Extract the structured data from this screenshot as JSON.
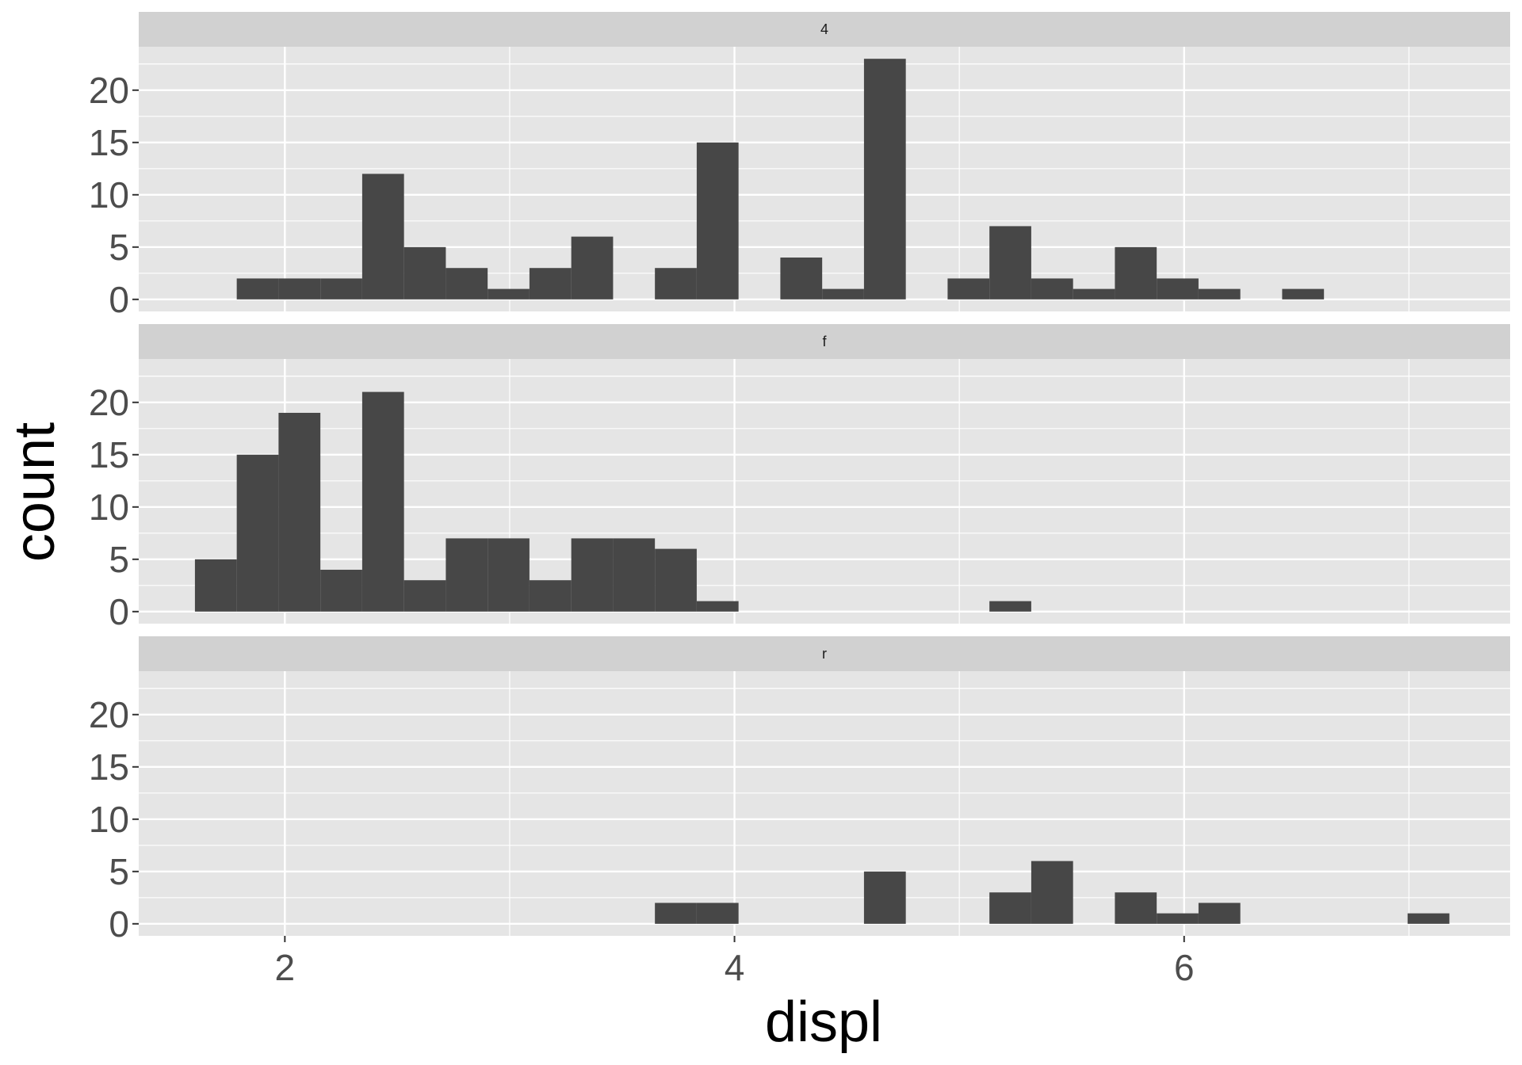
{
  "chart_data": {
    "type": "bar",
    "xlabel": "displ",
    "ylabel": "count",
    "xlim": [
      1.35,
      7.45
    ],
    "ylim": [
      -1.15,
      24.15
    ],
    "x_ticks": [
      2,
      4,
      6
    ],
    "x_tick_labels": [
      "2",
      "4",
      "6"
    ],
    "y_ticks": [
      0,
      5,
      10,
      15,
      20
    ],
    "y_tick_labels": [
      "0",
      "5",
      "10",
      "15",
      "20"
    ],
    "bin_start": 1.6,
    "bin_width": 0.186,
    "grid": true,
    "legend": "none",
    "colors": {
      "bar": "#474747",
      "panel_bg": "#e5e5e5",
      "strip_bg": "#d1d1d1",
      "grid": "#ffffff"
    },
    "panels": [
      {
        "label": "4",
        "counts": [
          0,
          2,
          2,
          2,
          12,
          5,
          3,
          1,
          3,
          6,
          0,
          3,
          15,
          0,
          4,
          1,
          23,
          0,
          2,
          7,
          2,
          1,
          5,
          2,
          1,
          0,
          1,
          0,
          0,
          0
        ]
      },
      {
        "label": "f",
        "counts": [
          5,
          15,
          19,
          4,
          21,
          3,
          7,
          7,
          3,
          7,
          7,
          6,
          1,
          0,
          0,
          0,
          0,
          0,
          0,
          1,
          0,
          0,
          0,
          0,
          0,
          0,
          0,
          0,
          0,
          0
        ]
      },
      {
        "label": "r",
        "counts": [
          0,
          0,
          0,
          0,
          0,
          0,
          0,
          0,
          0,
          0,
          0,
          2,
          2,
          0,
          0,
          0,
          5,
          0,
          0,
          3,
          6,
          0,
          3,
          1,
          2,
          0,
          0,
          0,
          0,
          1
        ]
      }
    ]
  }
}
